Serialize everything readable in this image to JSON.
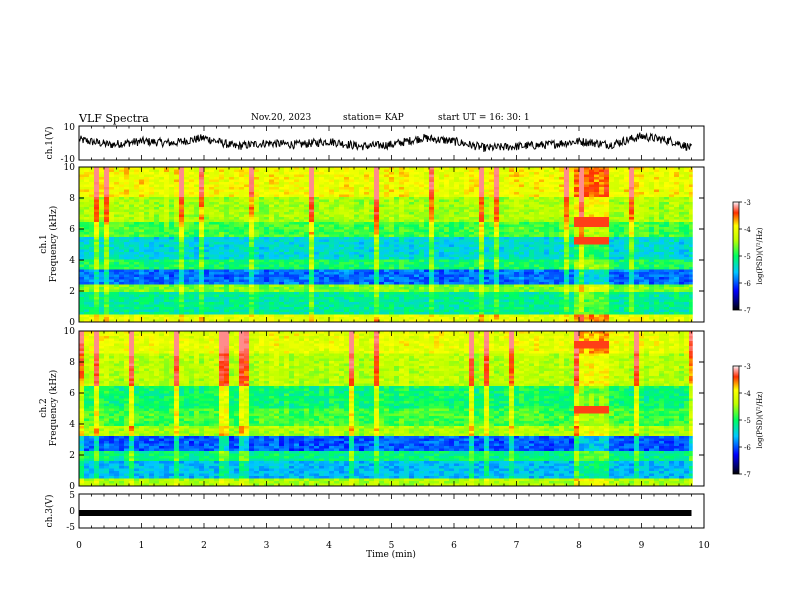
{
  "header": {
    "title": "VLF Spectra",
    "date": "Nov.20, 2023",
    "station": "station= KAP",
    "start": "start  UT  =   16: 30: 1"
  },
  "chart_data": [
    {
      "type": "line",
      "ylabel": "ch.1(V)",
      "xlim": [
        0,
        10
      ],
      "ylim": [
        -10,
        10
      ],
      "yticks": [
        "10",
        "-10"
      ],
      "series": [
        {
          "values_desc": "",
          "x": [
            0,
            0.5,
            1,
            1.5,
            2,
            2.5,
            3,
            3.5,
            4,
            4.5,
            5,
            5.5,
            6,
            6.5,
            7,
            7.5,
            8,
            8.5,
            9,
            9.5,
            9.8
          ],
          "values": [
            2,
            -1,
            1,
            0,
            3,
            -2,
            0,
            -1,
            1,
            -2,
            -1,
            3,
            1,
            -3,
            -2,
            -1,
            1,
            -1,
            4,
            1,
            -3
          ]
        }
      ]
    },
    {
      "type": "heatmap",
      "ylabel": "ch.1\nFrequency (kHz)",
      "ylabel_parts": [
        "ch.1",
        "Frequency  (kHz)"
      ],
      "xlim": [
        0,
        10
      ],
      "ylim": [
        0,
        10
      ],
      "yticks": [
        "0",
        "2",
        "4",
        "6",
        "8",
        "10"
      ],
      "colorbar": {
        "label": "log(PSD)(V²/Hz)",
        "ticks": [
          "-3",
          "-4",
          "-5",
          "-6",
          "-7"
        ],
        "range": [
          -7,
          -3
        ]
      }
    },
    {
      "type": "heatmap",
      "ylabel": "ch.2\nFrequency (kHz)",
      "ylabel_parts": [
        "ch.2",
        "Frequency  (kHz)"
      ],
      "xlim": [
        0,
        10
      ],
      "ylim": [
        0,
        10
      ],
      "yticks": [
        "0",
        "2",
        "4",
        "6",
        "8",
        "10"
      ],
      "colorbar": {
        "label": "log(PSD)(V²/Hz)",
        "ticks": [
          "-3",
          "-4",
          "-5",
          "-6",
          "-7"
        ],
        "range": [
          -7,
          -3
        ]
      }
    },
    {
      "type": "line",
      "ylabel": "ch.3(V)",
      "xlim": [
        0,
        10
      ],
      "ylim": [
        -5,
        5
      ],
      "yticks": [
        "5",
        "0",
        "-5"
      ],
      "series": [
        {
          "x": [
            0,
            9.8
          ],
          "values": [
            -0.6,
            -0.6
          ]
        }
      ]
    }
  ],
  "xaxis": {
    "label": "Time  (min)",
    "ticks": [
      "0",
      "1",
      "2",
      "3",
      "4",
      "5",
      "6",
      "7",
      "8",
      "9",
      "10"
    ]
  }
}
